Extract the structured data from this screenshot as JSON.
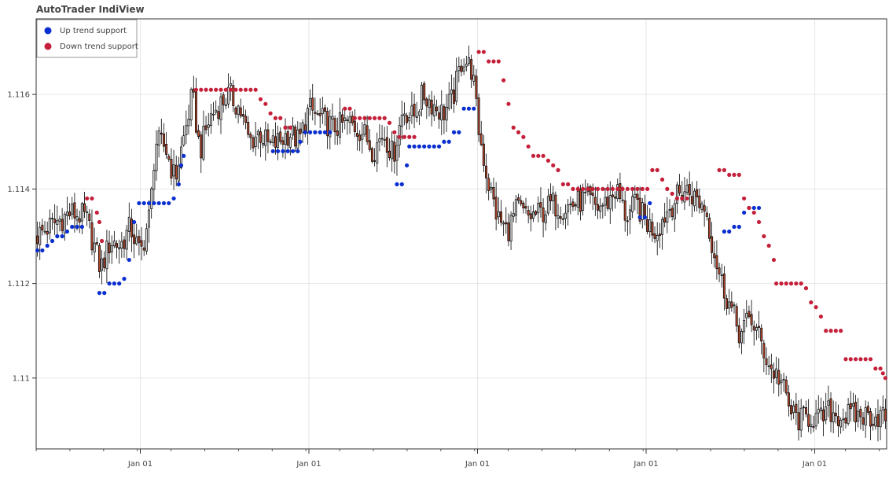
{
  "chart_data": {
    "type": "candlestick",
    "title": "AutoTrader IndiView",
    "xlabel": "",
    "ylabel": "",
    "ylim": [
      1.1085,
      1.1176
    ],
    "x_tick_labels": [
      "Jan 01",
      "Jan 01",
      "Jan 01",
      "Jan 01",
      "Jan 01"
    ],
    "y_ticks": [
      1.11,
      1.112,
      1.114,
      1.116
    ],
    "y_tick_labels": [
      "1.11",
      "1.112",
      "1.114",
      "1.116"
    ],
    "grid": true,
    "legend": {
      "placement": "top-left",
      "entries": [
        {
          "label": "Up trend support",
          "color": "#0a2ecf"
        },
        {
          "label": "Down trend support",
          "color": "#c4203a"
        }
      ]
    },
    "colors": {
      "up_candle": "#dcdcdc",
      "down_candle": "#b5482e",
      "wick": "#000000"
    },
    "price_path": [
      [
        0,
        1.113
      ],
      [
        8,
        1.1133
      ],
      [
        14,
        1.1135
      ],
      [
        20,
        1.1134
      ],
      [
        24,
        1.1127
      ],
      [
        26,
        1.1123
      ],
      [
        30,
        1.1129
      ],
      [
        34,
        1.1128
      ],
      [
        38,
        1.1132
      ],
      [
        42,
        1.1126
      ],
      [
        46,
        1.1135
      ],
      [
        48,
        1.115
      ],
      [
        52,
        1.1149
      ],
      [
        56,
        1.1142
      ],
      [
        60,
        1.1152
      ],
      [
        63,
        1.116
      ],
      [
        66,
        1.1148
      ],
      [
        70,
        1.1155
      ],
      [
        74,
        1.1158
      ],
      [
        78,
        1.116
      ],
      [
        82,
        1.1157
      ],
      [
        86,
        1.115
      ],
      [
        90,
        1.1152
      ],
      [
        94,
        1.1149
      ],
      [
        98,
        1.115
      ],
      [
        102,
        1.1152
      ],
      [
        106,
        1.115
      ],
      [
        110,
        1.1157
      ],
      [
        114,
        1.1155
      ],
      [
        120,
        1.1153
      ],
      [
        126,
        1.1154
      ],
      [
        132,
        1.1152
      ],
      [
        136,
        1.1148
      ],
      [
        140,
        1.1152
      ],
      [
        144,
        1.1147
      ],
      [
        148,
        1.1157
      ],
      [
        152,
        1.1155
      ],
      [
        156,
        1.116
      ],
      [
        160,
        1.1158
      ],
      [
        164,
        1.1156
      ],
      [
        168,
        1.1159
      ],
      [
        172,
        1.1168
      ],
      [
        176,
        1.1165
      ],
      [
        178,
        1.1154
      ],
      [
        182,
        1.1142
      ],
      [
        186,
        1.1134
      ],
      [
        190,
        1.1131
      ],
      [
        194,
        1.1136
      ],
      [
        198,
        1.1134
      ],
      [
        204,
        1.1135
      ],
      [
        208,
        1.1137
      ],
      [
        212,
        1.1136
      ],
      [
        218,
        1.1137
      ],
      [
        222,
        1.1138
      ],
      [
        226,
        1.1136
      ],
      [
        230,
        1.1137
      ],
      [
        234,
        1.114
      ],
      [
        238,
        1.1134
      ],
      [
        242,
        1.1137
      ],
      [
        246,
        1.1133
      ],
      [
        250,
        1.1131
      ],
      [
        254,
        1.1135
      ],
      [
        258,
        1.1138
      ],
      [
        262,
        1.114
      ],
      [
        266,
        1.1138
      ],
      [
        270,
        1.1136
      ],
      [
        272,
        1.113
      ],
      [
        276,
        1.1121
      ],
      [
        280,
        1.1115
      ],
      [
        284,
        1.1109
      ],
      [
        288,
        1.1113
      ],
      [
        292,
        1.1108
      ],
      [
        296,
        1.1102
      ],
      [
        300,
        1.11
      ],
      [
        304,
        1.1093
      ],
      [
        308,
        1.1091
      ],
      [
        312,
        1.1092
      ],
      [
        316,
        1.1091
      ],
      [
        320,
        1.1093
      ],
      [
        324,
        1.1092
      ]
    ],
    "up_trend_support": [
      [
        0,
        1.1127
      ],
      [
        2,
        1.1127
      ],
      [
        4,
        1.1128
      ],
      [
        6,
        1.1129
      ],
      [
        8,
        1.113
      ],
      [
        10,
        1.113
      ],
      [
        12,
        1.1131
      ],
      [
        14,
        1.1132
      ],
      [
        16,
        1.1132
      ],
      [
        18,
        1.1132
      ],
      [
        25,
        1.1118
      ],
      [
        27,
        1.1118
      ],
      [
        29,
        1.112
      ],
      [
        31,
        1.112
      ],
      [
        33,
        1.112
      ],
      [
        35,
        1.1121
      ],
      [
        37,
        1.1125
      ],
      [
        39,
        1.1133
      ],
      [
        41,
        1.1137
      ],
      [
        43,
        1.1137
      ],
      [
        45,
        1.1137
      ],
      [
        47,
        1.1137
      ],
      [
        49,
        1.1137
      ],
      [
        51,
        1.1137
      ],
      [
        53,
        1.1137
      ],
      [
        55,
        1.1138
      ],
      [
        57,
        1.1141
      ],
      [
        58,
        1.1145
      ],
      [
        59,
        1.1147
      ],
      [
        95,
        1.1148
      ],
      [
        97,
        1.1148
      ],
      [
        99,
        1.1148
      ],
      [
        101,
        1.1148
      ],
      [
        103,
        1.1148
      ],
      [
        105,
        1.1148
      ],
      [
        106,
        1.115
      ],
      [
        108,
        1.1152
      ],
      [
        110,
        1.1152
      ],
      [
        112,
        1.1152
      ],
      [
        114,
        1.1152
      ],
      [
        116,
        1.1152
      ],
      [
        118,
        1.1152
      ],
      [
        145,
        1.1141
      ],
      [
        147,
        1.1141
      ],
      [
        149,
        1.1145
      ],
      [
        150,
        1.1149
      ],
      [
        152,
        1.1149
      ],
      [
        154,
        1.1149
      ],
      [
        156,
        1.1149
      ],
      [
        158,
        1.1149
      ],
      [
        160,
        1.1149
      ],
      [
        162,
        1.1149
      ],
      [
        164,
        1.115
      ],
      [
        166,
        1.115
      ],
      [
        168,
        1.1152
      ],
      [
        170,
        1.1152
      ],
      [
        172,
        1.1157
      ],
      [
        174,
        1.1157
      ],
      [
        176,
        1.1157
      ],
      [
        243,
        1.1134
      ],
      [
        245,
        1.1134
      ],
      [
        247,
        1.1137
      ],
      [
        277,
        1.1131
      ],
      [
        279,
        1.1131
      ],
      [
        281,
        1.1132
      ],
      [
        283,
        1.1132
      ],
      [
        285,
        1.1135
      ],
      [
        287,
        1.1136
      ],
      [
        289,
        1.1136
      ],
      [
        291,
        1.1136
      ]
    ],
    "down_trend_support": [
      [
        20,
        1.1138
      ],
      [
        22,
        1.1138
      ],
      [
        24,
        1.1135
      ],
      [
        25,
        1.1133
      ],
      [
        26,
        1.1129
      ],
      [
        64,
        1.1161
      ],
      [
        66,
        1.1161
      ],
      [
        68,
        1.1161
      ],
      [
        70,
        1.1161
      ],
      [
        72,
        1.1161
      ],
      [
        74,
        1.1161
      ],
      [
        76,
        1.1161
      ],
      [
        78,
        1.1161
      ],
      [
        80,
        1.1161
      ],
      [
        82,
        1.1161
      ],
      [
        84,
        1.1161
      ],
      [
        86,
        1.1161
      ],
      [
        88,
        1.1161
      ],
      [
        90,
        1.1159
      ],
      [
        92,
        1.1158
      ],
      [
        94,
        1.1156
      ],
      [
        96,
        1.1155
      ],
      [
        98,
        1.1155
      ],
      [
        100,
        1.1153
      ],
      [
        102,
        1.1153
      ],
      [
        124,
        1.1157
      ],
      [
        126,
        1.1157
      ],
      [
        128,
        1.1155
      ],
      [
        130,
        1.1155
      ],
      [
        132,
        1.1155
      ],
      [
        134,
        1.1155
      ],
      [
        136,
        1.1155
      ],
      [
        138,
        1.1155
      ],
      [
        140,
        1.1155
      ],
      [
        142,
        1.1154
      ],
      [
        144,
        1.1152
      ],
      [
        146,
        1.1151
      ],
      [
        148,
        1.1151
      ],
      [
        150,
        1.1151
      ],
      [
        152,
        1.1151
      ],
      [
        178,
        1.1169
      ],
      [
        180,
        1.1169
      ],
      [
        182,
        1.1167
      ],
      [
        184,
        1.1167
      ],
      [
        186,
        1.1167
      ],
      [
        188,
        1.1163
      ],
      [
        190,
        1.1158
      ],
      [
        192,
        1.1153
      ],
      [
        194,
        1.1152
      ],
      [
        196,
        1.1151
      ],
      [
        198,
        1.1149
      ],
      [
        200,
        1.1147
      ],
      [
        202,
        1.1147
      ],
      [
        204,
        1.1147
      ],
      [
        206,
        1.1146
      ],
      [
        208,
        1.1145
      ],
      [
        210,
        1.1144
      ],
      [
        212,
        1.1141
      ],
      [
        214,
        1.1141
      ],
      [
        216,
        1.114
      ],
      [
        218,
        1.114
      ],
      [
        220,
        1.114
      ],
      [
        222,
        1.114
      ],
      [
        224,
        1.114
      ],
      [
        226,
        1.114
      ],
      [
        228,
        1.114
      ],
      [
        230,
        1.114
      ],
      [
        232,
        1.114
      ],
      [
        234,
        1.114
      ],
      [
        236,
        1.114
      ],
      [
        238,
        1.114
      ],
      [
        240,
        1.114
      ],
      [
        242,
        1.114
      ],
      [
        244,
        1.114
      ],
      [
        246,
        1.114
      ],
      [
        248,
        1.1144
      ],
      [
        250,
        1.1144
      ],
      [
        252,
        1.1142
      ],
      [
        254,
        1.114
      ],
      [
        256,
        1.1139
      ],
      [
        258,
        1.1138
      ],
      [
        260,
        1.1138
      ],
      [
        262,
        1.1138
      ],
      [
        275,
        1.1144
      ],
      [
        277,
        1.1144
      ],
      [
        279,
        1.1143
      ],
      [
        281,
        1.1143
      ],
      [
        283,
        1.1143
      ],
      [
        285,
        1.1138
      ],
      [
        287,
        1.1136
      ],
      [
        289,
        1.1135
      ],
      [
        291,
        1.1133
      ],
      [
        293,
        1.113
      ],
      [
        295,
        1.1128
      ],
      [
        297,
        1.1125
      ],
      [
        298,
        1.112
      ],
      [
        300,
        1.112
      ],
      [
        302,
        1.112
      ],
      [
        304,
        1.112
      ],
      [
        306,
        1.112
      ],
      [
        308,
        1.112
      ],
      [
        310,
        1.1119
      ],
      [
        312,
        1.1116
      ],
      [
        314,
        1.1115
      ],
      [
        316,
        1.1113
      ],
      [
        318,
        1.111
      ],
      [
        320,
        1.111
      ],
      [
        322,
        1.111
      ],
      [
        324,
        1.111
      ],
      [
        326,
        1.1104
      ],
      [
        328,
        1.1104
      ],
      [
        330,
        1.1104
      ],
      [
        332,
        1.1104
      ],
      [
        334,
        1.1104
      ],
      [
        336,
        1.1104
      ],
      [
        338,
        1.1102
      ],
      [
        340,
        1.1102
      ],
      [
        341,
        1.1101
      ],
      [
        342,
        1.11
      ]
    ]
  }
}
